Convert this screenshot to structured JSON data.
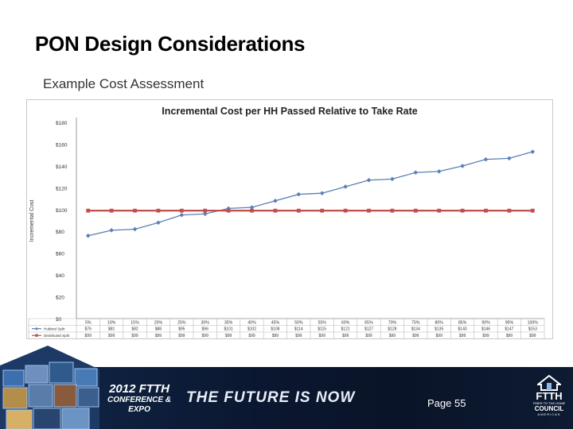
{
  "slide": {
    "title": "PON Design Considerations",
    "subtitle": "Example Cost Assessment",
    "page_label": "Page 55"
  },
  "banner": {
    "event_line1": "2012 FTTH",
    "event_line2": "CONFERENCE & EXPO",
    "tagline": "THE FUTURE IS NOW",
    "logo_name": "FTTH",
    "logo_small1": "FIBER TO THE HOME",
    "logo_council": "COUNCIL",
    "logo_region": "AMERICAS"
  },
  "chart_data": {
    "type": "line",
    "title": "Incremental Cost per HH Passed Relative to Take Rate",
    "ylabel": "Incremental Cost",
    "xlabel": "",
    "ylim": [
      0,
      180
    ],
    "yticks": [
      0,
      20,
      40,
      60,
      80,
      100,
      120,
      140,
      160,
      180
    ],
    "ytick_labels": [
      "$0",
      "$20",
      "$40",
      "$60",
      "$80",
      "$100",
      "$120",
      "$140",
      "$160",
      "$180"
    ],
    "categories": [
      "5%",
      "10%",
      "15%",
      "20%",
      "25%",
      "30%",
      "35%",
      "40%",
      "45%",
      "50%",
      "55%",
      "60%",
      "65%",
      "70%",
      "75%",
      "80%",
      "85%",
      "90%",
      "95%",
      "100%"
    ],
    "grid": false,
    "legend": "table-below",
    "series": [
      {
        "name": "Hubbed Split",
        "color": "#5b7fb6",
        "marker": "diamond",
        "values": [
          76,
          81,
          82,
          88,
          95,
          96,
          101,
          102,
          108,
          114,
          115,
          121,
          127,
          128,
          134,
          135,
          140,
          146,
          147,
          153
        ]
      },
      {
        "name": "Distributed Split",
        "color": "#c0504d",
        "marker": "square",
        "values": [
          99,
          99,
          99,
          99,
          99,
          99,
          99,
          99,
          99,
          99,
          99,
          99,
          99,
          99,
          99,
          99,
          99,
          99,
          99,
          99
        ]
      }
    ]
  }
}
